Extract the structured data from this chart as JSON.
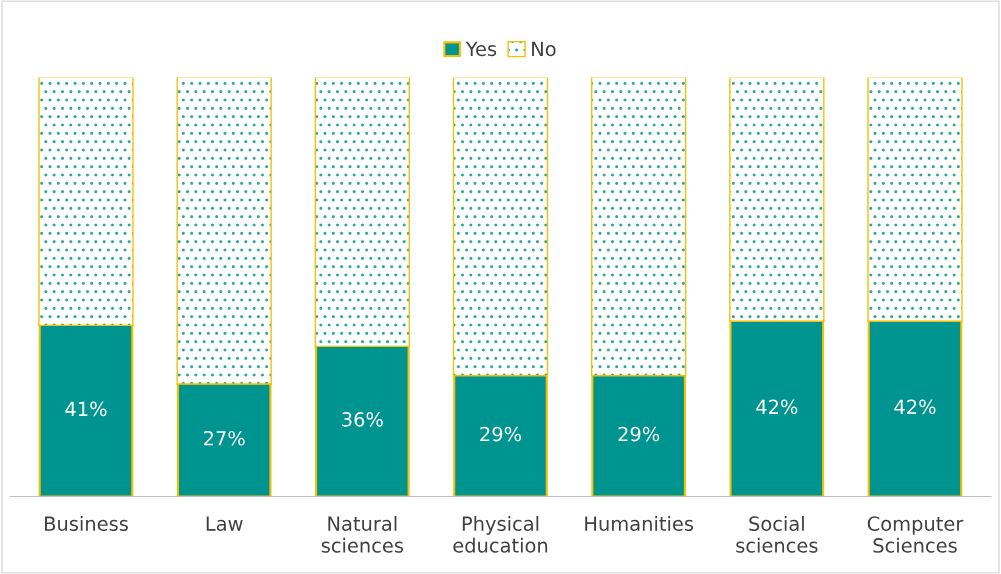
{
  "chart_data": {
    "type": "bar",
    "stacked": true,
    "categories": [
      "Business",
      "Law",
      "Natural\nsciences",
      "Physical\neducation",
      "Humanities",
      "Social\nsciences",
      "Computer\nSciences"
    ],
    "series": [
      {
        "name": "Yes",
        "color": "#009490",
        "values": [
          41,
          27,
          36,
          29,
          29,
          42,
          42
        ],
        "value_labels": [
          "41%",
          "27%",
          "36%",
          "29%",
          "29%",
          "42%",
          "42%"
        ]
      },
      {
        "name": "No",
        "color": "#ffffff",
        "values": [
          59,
          73,
          64,
          71,
          71,
          58,
          58
        ]
      }
    ],
    "ylim": [
      0,
      100
    ],
    "legend": "top",
    "grid": false
  }
}
